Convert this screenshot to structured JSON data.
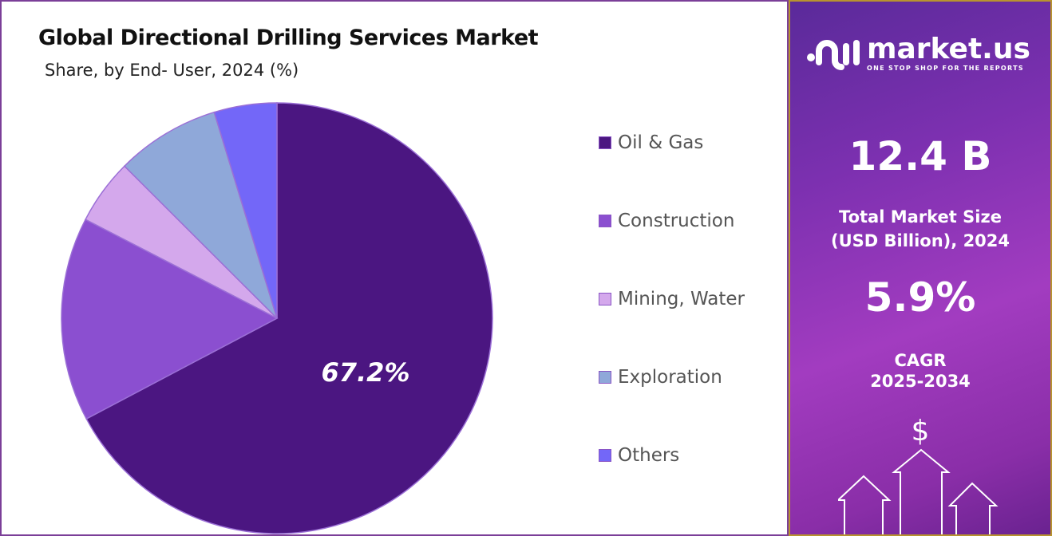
{
  "chart_data": {
    "type": "pie",
    "title": "Global Directional Drilling Services Market",
    "subtitle": "Share, by End- User, 2024 (%)",
    "categories": [
      "Oil & Gas",
      "Construction",
      "Mining, Water",
      "Exploration",
      "Others"
    ],
    "values": [
      67.2,
      15.3,
      4.9,
      7.8,
      4.7
    ],
    "colors": [
      "#4b1681",
      "#8b4fd0",
      "#d4a8ec",
      "#8fa8d9",
      "#7367f8"
    ],
    "data_labels": [
      "67.2%",
      "",
      "",
      "",
      ""
    ],
    "legend_position": "right"
  },
  "sidebar": {
    "logo_name": "market.us",
    "logo_tagline": "ONE STOP SHOP FOR THE REPORTS",
    "market_size": "12.4 B",
    "market_size_label_1": "Total Market Size",
    "market_size_label_2": "(USD Billion), 2024",
    "cagr": "5.9%",
    "cagr_label_1": "CAGR",
    "cagr_label_2": "2025-2034",
    "dollar_symbol": "$"
  }
}
